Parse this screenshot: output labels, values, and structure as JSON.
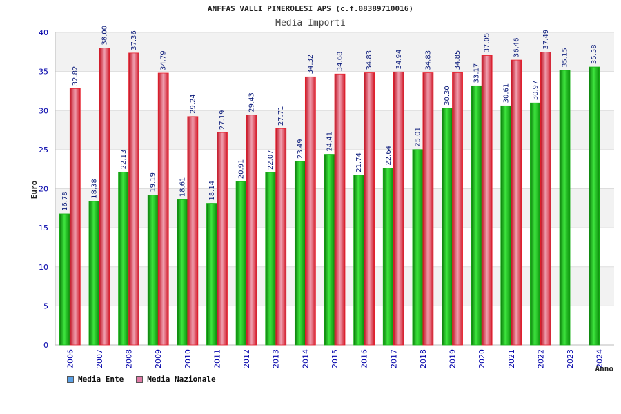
{
  "title": "ANFFAS VALLI PINEROLESI APS (c.f.08389710016)",
  "subtitle": "Media Importi",
  "colors": {
    "ente": "#18b418",
    "nazionale": "#e8202c",
    "legend_ente": "#5aa0e6",
    "legend_nazionale": "#e07aa6"
  },
  "chart_data": {
    "type": "bar",
    "title": "ANFFAS VALLI PINEROLESI APS (c.f.08389710016)",
    "subtitle": "Media Importi",
    "xlabel": "Anno",
    "ylabel": "Euro",
    "ylim": [
      0,
      40
    ],
    "yticks": [
      0,
      5,
      10,
      15,
      20,
      25,
      30,
      35,
      40
    ],
    "grid": true,
    "legend_position": "bottom-left",
    "categories": [
      "2006",
      "2007",
      "2008",
      "2009",
      "2010",
      "2011",
      "2012",
      "2013",
      "2014",
      "2015",
      "2016",
      "2017",
      "2018",
      "2019",
      "2020",
      "2021",
      "2022",
      "2023",
      "2024"
    ],
    "series": [
      {
        "name": "Media Ente",
        "values": [
          16.78,
          18.38,
          22.13,
          19.19,
          18.61,
          18.14,
          20.91,
          22.07,
          23.49,
          24.41,
          21.74,
          22.64,
          25.01,
          30.3,
          33.17,
          30.61,
          30.97,
          35.15,
          35.58
        ],
        "labels": [
          "16.78",
          "18.38",
          "22.13",
          "19.19",
          "18.61",
          "18.14",
          "20.91",
          "22.07",
          "23.49",
          "24.41",
          "21.74",
          "22.64",
          "25.01",
          "30.30",
          "33.17",
          "30.61",
          "30.97",
          "35.15",
          "35.58"
        ]
      },
      {
        "name": "Media Nazionale",
        "values": [
          32.82,
          38.0,
          37.36,
          34.79,
          29.24,
          27.19,
          29.43,
          27.71,
          34.32,
          34.68,
          34.83,
          34.94,
          34.83,
          34.85,
          37.05,
          36.46,
          37.49,
          null,
          null
        ],
        "labels": [
          "32.82",
          "38.00",
          "37.36",
          "34.79",
          "29.24",
          "27.19",
          "29.43",
          "27.71",
          "34.32",
          "34.68",
          "34.83",
          "34.94",
          "34.83",
          "34.85",
          "37.05",
          "36.46",
          "37.49",
          "",
          ""
        ]
      }
    ]
  }
}
